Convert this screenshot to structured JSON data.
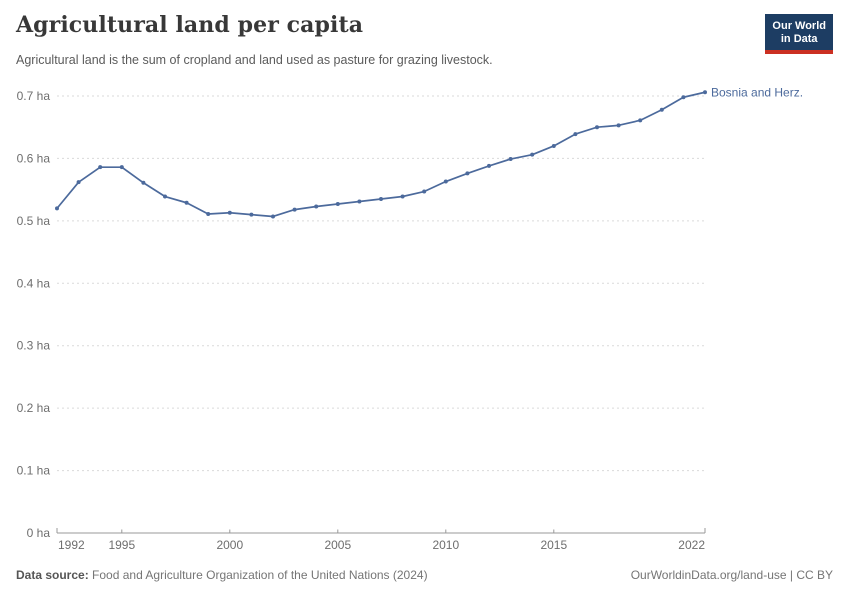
{
  "header": {
    "logo": {
      "line1": "Our World",
      "line2": "in Data"
    }
  },
  "chart_data": {
    "type": "line",
    "title": "Agricultural land per capita",
    "subtitle": "Agricultural land is the sum of cropland and land used as pasture for grazing livestock.",
    "unit": "ha",
    "xlim": [
      1992,
      2022
    ],
    "ylim": [
      0,
      0.7
    ],
    "grid": "horizontal-dashed",
    "legend_position": "end-of-line-label",
    "line_color": "#4c6a9c",
    "x": [
      1992,
      1993,
      1994,
      1995,
      1996,
      1997,
      1998,
      1999,
      2000,
      2001,
      2002,
      2003,
      2004,
      2005,
      2006,
      2007,
      2008,
      2009,
      2010,
      2011,
      2012,
      2013,
      2014,
      2015,
      2016,
      2017,
      2018,
      2019,
      2020,
      2021,
      2022
    ],
    "series": [
      {
        "name": "Bosnia and Herz.",
        "color": "#4c6a9c",
        "values": [
          0.52,
          0.562,
          0.586,
          0.586,
          0.561,
          0.539,
          0.529,
          0.511,
          0.513,
          0.51,
          0.507,
          0.518,
          0.523,
          0.527,
          0.531,
          0.535,
          0.539,
          0.547,
          0.563,
          0.576,
          0.588,
          0.599,
          0.606,
          0.62,
          0.639,
          0.65,
          0.653,
          0.661,
          0.678,
          0.698,
          0.706
        ]
      }
    ],
    "yticks": [
      {
        "value": 0.0,
        "label": "0 ha"
      },
      {
        "value": 0.1,
        "label": "0.1 ha"
      },
      {
        "value": 0.2,
        "label": "0.2 ha"
      },
      {
        "value": 0.3,
        "label": "0.3 ha"
      },
      {
        "value": 0.4,
        "label": "0.4 ha"
      },
      {
        "value": 0.5,
        "label": "0.5 ha"
      },
      {
        "value": 0.6,
        "label": "0.6 ha"
      },
      {
        "value": 0.7,
        "label": "0.7 ha"
      }
    ],
    "xticks": [
      {
        "value": 1992,
        "label": "1992"
      },
      {
        "value": 1995,
        "label": "1995"
      },
      {
        "value": 2000,
        "label": "2000"
      },
      {
        "value": 2005,
        "label": "2005"
      },
      {
        "value": 2010,
        "label": "2010"
      },
      {
        "value": 2015,
        "label": "2015"
      },
      {
        "value": 2022,
        "label": "2022"
      }
    ]
  },
  "footer": {
    "source_label": "Data source:",
    "source_text": " Food and Agriculture Organization of the United Nations (2024)",
    "license_text": "OurWorldinData.org/land-use | CC BY"
  }
}
